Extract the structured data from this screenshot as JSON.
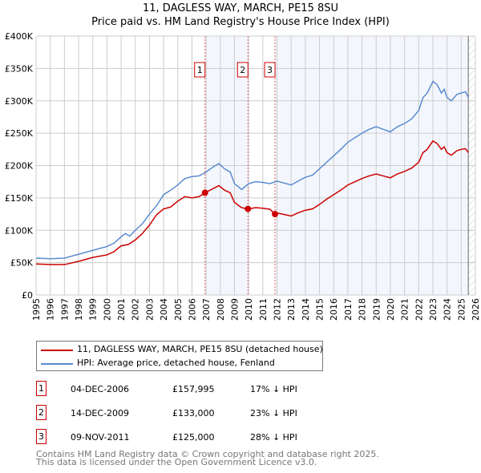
{
  "chart_data": {
    "type": "line",
    "title": "11, DAGLESS WAY, MARCH, PE15 8SU",
    "subtitle": "Price paid vs. HM Land Registry's House Price Index (HPI)",
    "xlim": [
      1995,
      2026
    ],
    "ylim": [
      0,
      400000
    ],
    "y_ticks": [
      {
        "v": 0,
        "label": "£0"
      },
      {
        "v": 50000,
        "label": "£50K"
      },
      {
        "v": 100000,
        "label": "£100K"
      },
      {
        "v": 150000,
        "label": "£150K"
      },
      {
        "v": 200000,
        "label": "£200K"
      },
      {
        "v": 250000,
        "label": "£250K"
      },
      {
        "v": 300000,
        "label": "£300K"
      },
      {
        "v": 350000,
        "label": "£350K"
      },
      {
        "v": 400000,
        "label": "£400K"
      }
    ],
    "x_ticks": [
      "1995",
      "1996",
      "1997",
      "1998",
      "1999",
      "2000",
      "2001",
      "2002",
      "2003",
      "2004",
      "2005",
      "2006",
      "2007",
      "2008",
      "2009",
      "2010",
      "2011",
      "2012",
      "2013",
      "2014",
      "2015",
      "2016",
      "2017",
      "2018",
      "2019",
      "2020",
      "2021",
      "2022",
      "2023",
      "2024",
      "2025",
      "2026"
    ],
    "grid": true,
    "forecast_from": 2025.5,
    "series": [
      {
        "name": "11, DAGLESS WAY, MARCH, PE15 8SU (detached house)",
        "color": "#cc0000",
        "points": [
          [
            1995,
            48
          ],
          [
            1996,
            47
          ],
          [
            1997,
            47
          ],
          [
            1998,
            52
          ],
          [
            1999,
            58
          ],
          [
            2000,
            62
          ],
          [
            2000.5,
            67
          ],
          [
            2001,
            76
          ],
          [
            2001.5,
            78
          ],
          [
            2002,
            85
          ],
          [
            2002.5,
            95
          ],
          [
            2003,
            108
          ],
          [
            2003.5,
            124
          ],
          [
            2004,
            133
          ],
          [
            2004.5,
            136
          ],
          [
            2005,
            145
          ],
          [
            2005.5,
            152
          ],
          [
            2006,
            150
          ],
          [
            2006.5,
            152
          ],
          [
            2006.92,
            158
          ],
          [
            2007.5,
            164.5
          ],
          [
            2007.9,
            169
          ],
          [
            2008.3,
            162
          ],
          [
            2008.7,
            158
          ],
          [
            2009,
            143
          ],
          [
            2009.5,
            135
          ],
          [
            2009.95,
            133
          ],
          [
            2010.5,
            135
          ],
          [
            2011,
            134
          ],
          [
            2011.5,
            132.5
          ],
          [
            2011.86,
            125
          ],
          [
            2012,
            126.7
          ],
          [
            2012.5,
            124.5
          ],
          [
            2013,
            122
          ],
          [
            2013.5,
            127
          ],
          [
            2014,
            131
          ],
          [
            2014.5,
            133
          ],
          [
            2015,
            140
          ],
          [
            2015.5,
            148
          ],
          [
            2016,
            155
          ],
          [
            2016.5,
            162
          ],
          [
            2017,
            170
          ],
          [
            2017.5,
            175
          ],
          [
            2018,
            180
          ],
          [
            2018.5,
            184
          ],
          [
            2019,
            187
          ],
          [
            2019.5,
            184
          ],
          [
            2020,
            181
          ],
          [
            2020.5,
            187
          ],
          [
            2021,
            191
          ],
          [
            2021.5,
            196
          ],
          [
            2022,
            205
          ],
          [
            2022.3,
            220
          ],
          [
            2022.6,
            225
          ],
          [
            2023,
            238
          ],
          [
            2023.3,
            234
          ],
          [
            2023.6,
            225
          ],
          [
            2023.8,
            229
          ],
          [
            2024,
            220
          ],
          [
            2024.3,
            216
          ],
          [
            2024.7,
            223
          ],
          [
            2025,
            225
          ],
          [
            2025.3,
            226
          ],
          [
            2025.5,
            220
          ]
        ]
      },
      {
        "name": "HPI: Average price, detached house, Fenland",
        "color": "#5b8bd0",
        "points": [
          [
            1995,
            57
          ],
          [
            1996,
            56
          ],
          [
            1997,
            57
          ],
          [
            1997.5,
            60
          ],
          [
            1998,
            63
          ],
          [
            1999,
            69
          ],
          [
            2000,
            75
          ],
          [
            2000.5,
            80
          ],
          [
            2001,
            90
          ],
          [
            2001.3,
            95
          ],
          [
            2001.6,
            91
          ],
          [
            2002,
            100
          ],
          [
            2002.5,
            110
          ],
          [
            2003,
            125
          ],
          [
            2003.5,
            138
          ],
          [
            2004,
            155
          ],
          [
            2004.5,
            162
          ],
          [
            2005,
            170
          ],
          [
            2005.5,
            180
          ],
          [
            2006,
            183
          ],
          [
            2006.5,
            184
          ],
          [
            2007,
            190
          ],
          [
            2007.5,
            198
          ],
          [
            2007.9,
            203
          ],
          [
            2008.3,
            195
          ],
          [
            2008.7,
            190
          ],
          [
            2009,
            172
          ],
          [
            2009.5,
            163
          ],
          [
            2010,
            172
          ],
          [
            2010.5,
            175
          ],
          [
            2011,
            174
          ],
          [
            2011.5,
            172
          ],
          [
            2012,
            176
          ],
          [
            2012.5,
            173
          ],
          [
            2013,
            170
          ],
          [
            2013.5,
            176
          ],
          [
            2014,
            182
          ],
          [
            2014.5,
            185
          ],
          [
            2015,
            195
          ],
          [
            2015.5,
            205
          ],
          [
            2016,
            215
          ],
          [
            2016.5,
            225
          ],
          [
            2017,
            236
          ],
          [
            2017.5,
            243
          ],
          [
            2018,
            250
          ],
          [
            2018.5,
            256
          ],
          [
            2019,
            260
          ],
          [
            2019.5,
            256
          ],
          [
            2020,
            252
          ],
          [
            2020.5,
            260
          ],
          [
            2021,
            265
          ],
          [
            2021.5,
            272
          ],
          [
            2022,
            285
          ],
          [
            2022.3,
            305
          ],
          [
            2022.6,
            312
          ],
          [
            2023,
            330
          ],
          [
            2023.3,
            325
          ],
          [
            2023.6,
            312
          ],
          [
            2023.8,
            318
          ],
          [
            2024,
            305
          ],
          [
            2024.3,
            300
          ],
          [
            2024.7,
            310
          ],
          [
            2025,
            312
          ],
          [
            2025.3,
            314
          ],
          [
            2025.5,
            305
          ]
        ]
      }
    ],
    "y_units": "thousands GBP",
    "sales": [
      {
        "n": "1",
        "date": "04-DEC-2006",
        "x": 2006.92,
        "price": "£157,995",
        "value": 158,
        "hpi": "17% ↓ HPI"
      },
      {
        "n": "2",
        "date": "14-DEC-2009",
        "x": 2009.95,
        "price": "£133,000",
        "value": 133,
        "hpi": "23% ↓ HPI"
      },
      {
        "n": "3",
        "date": "09-NOV-2011",
        "x": 2011.86,
        "price": "£125,000",
        "value": 125,
        "hpi": "28% ↓ HPI"
      }
    ]
  },
  "footer": [
    "Contains HM Land Registry data © Crown copyright and database right 2025.",
    "This data is licensed under the Open Government Licence v3.0."
  ]
}
